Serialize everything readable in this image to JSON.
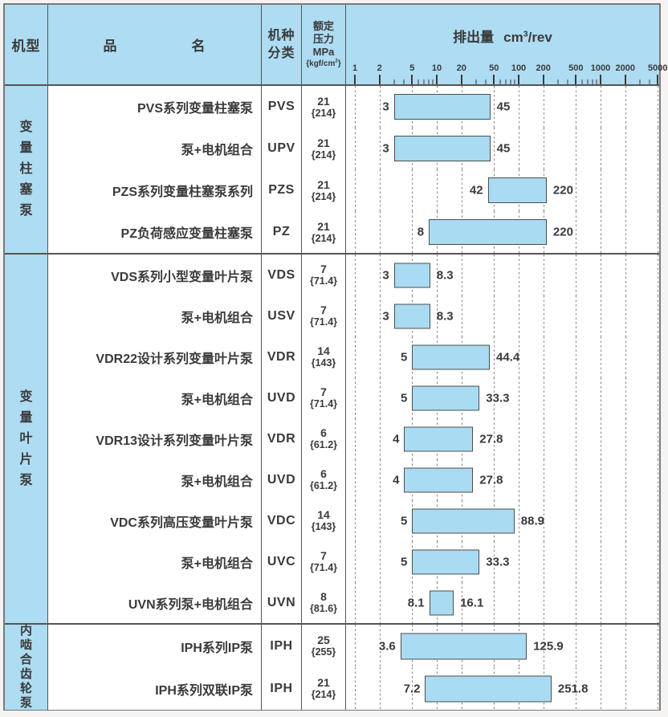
{
  "header": {
    "machine_type": "机型",
    "product_name_left": "品",
    "product_name_right": "名",
    "class_line1": "机种",
    "class_line2": "分类",
    "pressure_line1": "额定",
    "pressure_line2": "压力",
    "pressure_line3": "MPa",
    "pressure_kgf_pre": "{kgf/cm",
    "pressure_kgf_sup": "2",
    "pressure_kgf_post": "}",
    "chart_title_text": "排出量",
    "chart_unit_cm": "cm",
    "chart_unit_sup": "3",
    "chart_unit_rev": "/rev"
  },
  "axis": {
    "ticks": [
      1,
      2,
      5,
      10,
      20,
      50,
      100,
      200,
      500,
      1000,
      2000,
      5000
    ],
    "minor_ticks": [
      3,
      4,
      6,
      7,
      8,
      9,
      30,
      40,
      60,
      70,
      80,
      90,
      300,
      400,
      600,
      700,
      800,
      900,
      3000,
      4000
    ]
  },
  "groups": [
    {
      "label": "变量柱塞泵",
      "rows": [
        {
          "name": "PVS系列变量柱塞泵",
          "code": "PVS",
          "mpa": "21",
          "kgf": "{214}",
          "min": 3,
          "max": 45,
          "min_label": "3",
          "max_label": "45"
        },
        {
          "name": "泵+电机组合",
          "code": "UPV",
          "mpa": "21",
          "kgf": "{214}",
          "min": 3,
          "max": 45,
          "min_label": "3",
          "max_label": "45"
        },
        {
          "name": "PZS系列变量柱塞泵系列",
          "code": "PZS",
          "mpa": "21",
          "kgf": "{214}",
          "min": 42,
          "max": 220,
          "min_label": "42",
          "max_label": "220"
        },
        {
          "name": "PZ负荷感应变量柱塞泵",
          "code": "PZ",
          "mpa": "21",
          "kgf": "{214}",
          "min": 8,
          "max": 220,
          "min_label": "8",
          "max_label": "220"
        }
      ]
    },
    {
      "label": "变量叶片泵",
      "rows": [
        {
          "name": "VDS系列小型变量叶片泵",
          "code": "VDS",
          "mpa": "7",
          "kgf": "{71.4}",
          "min": 3,
          "max": 8.3,
          "min_label": "3",
          "max_label": "8.3"
        },
        {
          "name": "泵+电机组合",
          "code": "USV",
          "mpa": "7",
          "kgf": "{71.4}",
          "min": 3,
          "max": 8.3,
          "min_label": "3",
          "max_label": "8.3"
        },
        {
          "name": "VDR22设计系列变量叶片泵",
          "code": "VDR",
          "mpa": "14",
          "kgf": "{143}",
          "min": 5,
          "max": 44.4,
          "min_label": "5",
          "max_label": "44.4"
        },
        {
          "name": "泵+电机组合",
          "code": "UVD",
          "mpa": "7",
          "kgf": "{71.4}",
          "min": 5,
          "max": 33.3,
          "min_label": "5",
          "max_label": "33.3"
        },
        {
          "name": "VDR13设计系列变量叶片泵",
          "code": "VDR",
          "mpa": "6",
          "kgf": "{61.2}",
          "min": 4,
          "max": 27.8,
          "min_label": "4",
          "max_label": "27.8"
        },
        {
          "name": "泵+电机组合",
          "code": "UVD",
          "mpa": "6",
          "kgf": "{61.2}",
          "min": 4,
          "max": 27.8,
          "min_label": "4",
          "max_label": "27.8"
        },
        {
          "name": "VDC系列高压变量叶片泵",
          "code": "VDC",
          "mpa": "14",
          "kgf": "{143}",
          "min": 5,
          "max": 88.9,
          "min_label": "5",
          "max_label": "88.9"
        },
        {
          "name": "泵+电机组合",
          "code": "UVC",
          "mpa": "7",
          "kgf": "{71.4}",
          "min": 5,
          "max": 33.3,
          "min_label": "5",
          "max_label": "33.3"
        },
        {
          "name": "UVN系列泵+电机组合",
          "code": "UVN",
          "mpa": "8",
          "kgf": "{81.6}",
          "min": 8.1,
          "max": 16.1,
          "min_label": "8.1",
          "max_label": "16.1"
        }
      ]
    },
    {
      "label": "内啮合齿轮泵",
      "rows": [
        {
          "name": "IPH系列IP泵",
          "code": "IPH",
          "mpa": "25",
          "kgf": "{255}",
          "min": 3.6,
          "max": 125.9,
          "min_label": "3.6",
          "max_label": "125.9"
        },
        {
          "name": "IPH系列双联IP泵",
          "code": "IPH",
          "mpa": "21",
          "kgf": "{214}",
          "min": 7.2,
          "max": 251.8,
          "min_label": "7.2",
          "max_label": "251.8"
        }
      ]
    }
  ],
  "chart_data": {
    "type": "bar",
    "subtype": "horizontal-range",
    "x_scale": "log",
    "xlabel": "排出量 cm³/rev",
    "x_ticks": [
      1,
      2,
      5,
      10,
      20,
      50,
      100,
      200,
      500,
      1000,
      2000,
      5000
    ],
    "xlim": [
      1,
      5000
    ],
    "grid": "dashed-vertical-at-major-ticks",
    "categories": [
      "PVS",
      "UPV",
      "PZS",
      "PZ",
      "VDS",
      "USV",
      "VDR",
      "UVD",
      "VDR",
      "UVD",
      "VDC",
      "UVC",
      "UVN",
      "IPH",
      "IPH"
    ],
    "series": [
      {
        "name": "排出量范围 cm³/rev",
        "ranges": [
          [
            3,
            45
          ],
          [
            3,
            45
          ],
          [
            42,
            220
          ],
          [
            8,
            220
          ],
          [
            3,
            8.3
          ],
          [
            3,
            8.3
          ],
          [
            5,
            44.4
          ],
          [
            5,
            33.3
          ],
          [
            4,
            27.8
          ],
          [
            4,
            27.8
          ],
          [
            5,
            88.9
          ],
          [
            5,
            33.3
          ],
          [
            8.1,
            16.1
          ],
          [
            3.6,
            125.9
          ],
          [
            7.2,
            251.8
          ]
        ]
      }
    ]
  },
  "colors": {
    "cell_blue": "#aedcf2",
    "bar_fill": "#a9dbf3",
    "bar_border": "#4d4d4d",
    "grid_line": "#848484",
    "border": "#555555",
    "text": "#3a3a3a"
  }
}
